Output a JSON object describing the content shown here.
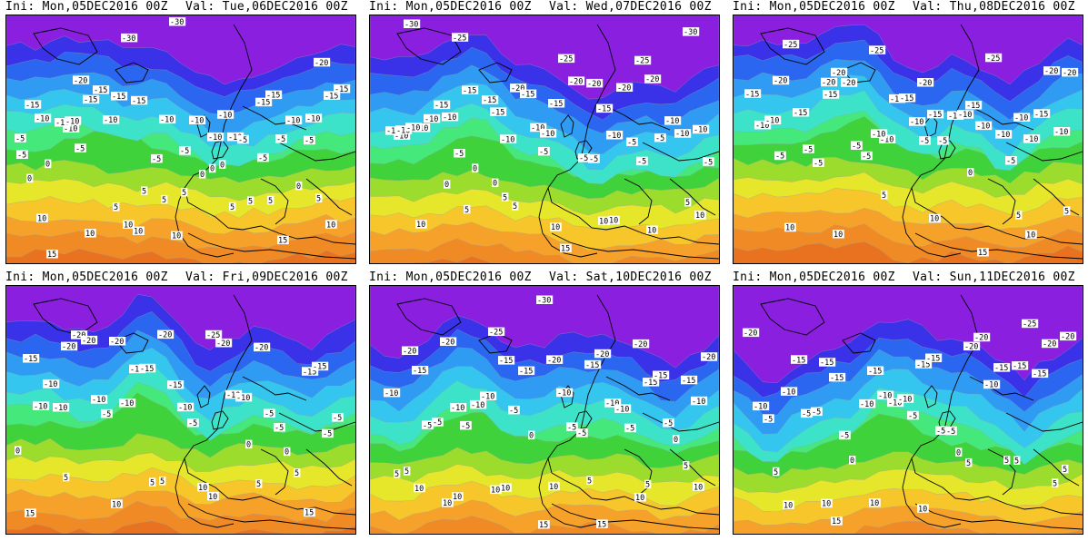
{
  "panels": [
    {
      "ini_label": "Ini:",
      "ini_value": "Mon,05DEC2016 00Z",
      "val_label": "Val:",
      "val_value": "Tue,06DEC2016 00Z",
      "labels": [
        "-5",
        "-10",
        "-15",
        "-10",
        "-10",
        "-15",
        "-5",
        "-15",
        "-20",
        "-30",
        "-30",
        "-10",
        "-15",
        "-20",
        "-10",
        "-15",
        "-15",
        "-5",
        "-10",
        "-5",
        "-15",
        "0",
        "-15",
        "5",
        "-10",
        "-5",
        "-10",
        "-15",
        "-10",
        "-10",
        "-5",
        "0",
        "5",
        "0",
        "-5",
        "-10",
        "5",
        "5",
        "0",
        "-5",
        "-10",
        "0",
        "-5",
        "10",
        "10",
        "0",
        "5",
        "5",
        "10",
        "10",
        "10",
        "5",
        "5",
        "15",
        "10",
        "15"
      ]
    },
    {
      "ini_label": "Ini:",
      "ini_value": "Mon,05DEC2016 00Z",
      "val_label": "Val:",
      "val_value": "Wed,07DEC2016 00Z",
      "labels": [
        "-10",
        "-10",
        "-15",
        "-5",
        "-20",
        "-25",
        "-30",
        "-30",
        "-25",
        "-10",
        "-15",
        "-15",
        "-20",
        "-10",
        "-10",
        "-15",
        "-20",
        "-25",
        "-10",
        "-5",
        "-5",
        "-10",
        "0",
        "-15",
        "-20",
        "-20",
        "-10",
        "-10",
        "-15",
        "-15",
        "-10",
        "-5",
        "-5",
        "-10",
        "-10",
        "0",
        "0",
        "-10",
        "-5",
        "-5",
        "5",
        "-10",
        "-5",
        "5",
        "10",
        "10",
        "10",
        "10",
        "10",
        "5",
        "5",
        "15",
        "10"
      ]
    },
    {
      "ini_label": "Ini:",
      "ini_value": "Mon,05DEC2016 00Z",
      "val_label": "Val:",
      "val_value": "Thu,08DEC2016 00Z",
      "labels": [
        "-20",
        "-20",
        "-25",
        "-20",
        "-15",
        "-10",
        "-20",
        "-25",
        "-20",
        "-10",
        "-15",
        "-10",
        "-10",
        "-15",
        "-15",
        "-20",
        "-15",
        "-5",
        "-25",
        "-15",
        "-10",
        "-5",
        "-5",
        "-15",
        "-10",
        "-10",
        "-20",
        "-10",
        "-5",
        "-5",
        "-10",
        "-10",
        "-5",
        "-10",
        "-5",
        "-15",
        "-10",
        "-5",
        "0",
        "5",
        "5",
        "10",
        "10",
        "5",
        "10",
        "15",
        "10"
      ]
    },
    {
      "ini_label": "Ini:",
      "ini_value": "Mon,05DEC2016 00Z",
      "val_label": "Val:",
      "val_value": "Fri,09DEC2016 00Z",
      "labels": [
        "-20",
        "-20",
        "-20",
        "-25",
        "-20",
        "-15",
        "-15",
        "-20",
        "-10",
        "-15",
        "-20",
        "-5",
        "-15",
        "-10",
        "-20",
        "-15",
        "-10",
        "-10",
        "-5",
        "-5",
        "-10",
        "-10",
        "-15",
        "-5",
        "-10",
        "0",
        "-5",
        "-10",
        "-5",
        "5",
        "10",
        "0",
        "5",
        "0",
        "5",
        "10",
        "5",
        "10",
        "5",
        "15",
        "15"
      ]
    },
    {
      "ini_label": "Ini:",
      "ini_value": "Mon,05DEC2016 00Z",
      "val_label": "Val:",
      "val_value": "Sat,10DEC2016 00Z",
      "labels": [
        "-20",
        "-25",
        "-30",
        "-15",
        "-20",
        "-15",
        "-20",
        "-10",
        "-15",
        "-20",
        "-20",
        "-15",
        "-10",
        "-15",
        "-5",
        "-5",
        "-10",
        "-10",
        "-15",
        "-20",
        "-5",
        "-10",
        "-15",
        "-5",
        "-10",
        "-5",
        "-10",
        "-5",
        "-10",
        "0",
        "-5",
        "-5",
        "0",
        "5",
        "10",
        "10",
        "15",
        "5",
        "10",
        "5",
        "5",
        "10",
        "10",
        "10",
        "15",
        "5",
        "10",
        "10"
      ]
    },
    {
      "ini_label": "Ini:",
      "ini_value": "Mon,05DEC2016 00Z",
      "val_label": "Val:",
      "val_value": "Sun,11DEC2016 00Z",
      "labels": [
        "-15",
        "-15",
        "-15",
        "-20",
        "-15",
        "-20",
        "-10",
        "-15",
        "-10",
        "-15",
        "-20",
        "-25",
        "-20",
        "-15",
        "-5",
        "-10",
        "-5",
        "-10",
        "-15",
        "-10",
        "-5",
        "0",
        "-10",
        "-5",
        "-15",
        "-20",
        "-5",
        "-5",
        "-10",
        "-5",
        "0",
        "5",
        "5",
        "5",
        "10",
        "10",
        "10",
        "5",
        "5",
        "5",
        "10",
        "15"
      ]
    }
  ]
}
